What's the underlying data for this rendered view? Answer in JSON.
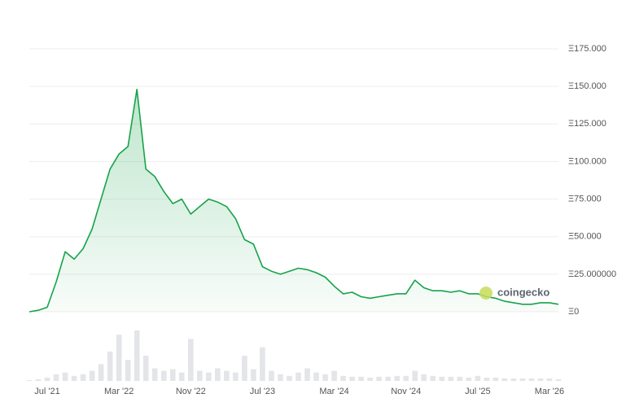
{
  "chart_data": {
    "type": "area",
    "watermark": "coingecko",
    "x": [
      "2021-05",
      "2021-06",
      "2021-07",
      "2021-08",
      "2021-09",
      "2021-10",
      "2021-11",
      "2021-12",
      "2022-01",
      "2022-02",
      "2022-03",
      "2022-04",
      "2022-05",
      "2022-06",
      "2022-07",
      "2022-08",
      "2022-09",
      "2022-10",
      "2022-11",
      "2022-12",
      "2023-01",
      "2023-02",
      "2023-03",
      "2023-04",
      "2023-05",
      "2023-06",
      "2023-07",
      "2023-08",
      "2023-09",
      "2023-10",
      "2023-11",
      "2023-12",
      "2024-01",
      "2024-02",
      "2024-03",
      "2024-04",
      "2024-05",
      "2024-06",
      "2024-07",
      "2024-08",
      "2024-09",
      "2024-10",
      "2024-11",
      "2024-12",
      "2025-01",
      "2025-02",
      "2025-03",
      "2025-04",
      "2025-05",
      "2025-06",
      "2025-07",
      "2025-08",
      "2025-09",
      "2025-10",
      "2025-11",
      "2025-12",
      "2026-01",
      "2026-02",
      "2026-03",
      "2026-04"
    ],
    "series": [
      {
        "color": "#16a34a",
        "values": [
          0,
          1,
          3,
          20,
          40,
          35,
          42,
          55,
          75,
          95,
          105,
          110,
          148,
          95,
          90,
          80,
          72,
          75,
          65,
          70,
          75,
          73,
          70,
          62,
          48,
          45,
          30,
          27,
          25,
          27,
          29,
          28,
          26,
          23,
          17,
          12,
          13,
          10,
          9,
          10,
          11,
          12,
          12,
          21,
          16,
          14,
          14,
          13,
          14,
          12,
          12,
          10,
          9,
          7,
          6,
          5,
          5,
          6,
          6,
          5
        ]
      }
    ],
    "volume": [
      1,
      2,
      4,
      8,
      10,
      6,
      8,
      12,
      20,
      35,
      55,
      25,
      60,
      30,
      15,
      12,
      14,
      10,
      50,
      12,
      10,
      15,
      12,
      10,
      30,
      14,
      40,
      12,
      8,
      6,
      10,
      15,
      10,
      8,
      12,
      6,
      5,
      5,
      4,
      5,
      5,
      6,
      6,
      12,
      8,
      6,
      5,
      5,
      5,
      4,
      6,
      4,
      4,
      3,
      3,
      3,
      3,
      3,
      3,
      2
    ],
    "xlim": [
      "2021-05",
      "2026-04"
    ],
    "xticks": [
      {
        "value": "2021-07",
        "label": "Jul '21"
      },
      {
        "value": "2022-03",
        "label": "Mar '22"
      },
      {
        "value": "2022-11",
        "label": "Nov '22"
      },
      {
        "value": "2023-07",
        "label": "Jul '23"
      },
      {
        "value": "2024-03",
        "label": "Mar '24"
      },
      {
        "value": "2024-11",
        "label": "Nov '24"
      },
      {
        "value": "2025-07",
        "label": "Jul '25"
      },
      {
        "value": "2026-03",
        "label": "Mar '26"
      }
    ],
    "ylim": [
      0,
      175
    ],
    "yticks": [
      {
        "value": 0,
        "label": "Ξ0"
      },
      {
        "value": 25,
        "label": "Ξ25.000000"
      },
      {
        "value": 50,
        "label": "Ξ50.000"
      },
      {
        "value": 75,
        "label": "Ξ75.000"
      },
      {
        "value": 100,
        "label": "Ξ100.000"
      },
      {
        "value": 125,
        "label": "Ξ125.000"
      },
      {
        "value": 150,
        "label": "Ξ150.000"
      },
      {
        "value": 175,
        "label": "Ξ175.000"
      }
    ],
    "grid": true
  }
}
